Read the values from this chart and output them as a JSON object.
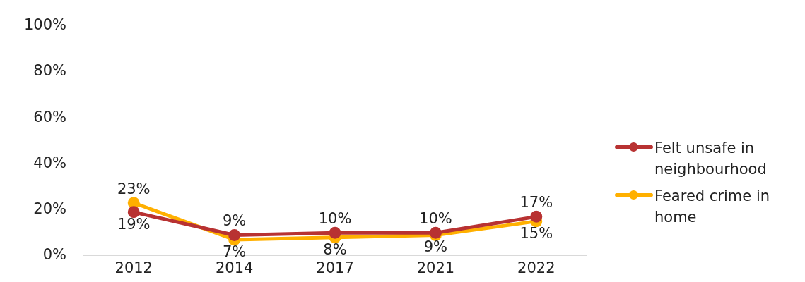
{
  "chart_data": {
    "type": "line",
    "categories": [
      "2012",
      "2014",
      "2017",
      "2021",
      "2022"
    ],
    "series": [
      {
        "name": "Felt unsafe in neighbourhood",
        "color": "#b83232",
        "values": [
          19,
          9,
          10,
          10,
          17
        ],
        "value_labels": [
          "19%",
          "9%",
          "10%",
          "10%",
          "17%"
        ]
      },
      {
        "name": "Feared crime in home",
        "color": "#ffb000",
        "values": [
          23,
          7,
          8,
          9,
          15
        ],
        "value_labels": [
          "23%",
          "7%",
          "8%",
          "9%",
          "15%"
        ]
      }
    ],
    "ylim": [
      0,
      100
    ],
    "yticks": [
      {
        "value": 0,
        "label": "0%"
      },
      {
        "value": 20,
        "label": "20%"
      },
      {
        "value": 40,
        "label": "40%"
      },
      {
        "value": 60,
        "label": "60%"
      },
      {
        "value": 80,
        "label": "80%"
      },
      {
        "value": 100,
        "label": "100%"
      }
    ],
    "grid": false,
    "legend": "right",
    "marker": "circle",
    "line_style": "solid"
  }
}
